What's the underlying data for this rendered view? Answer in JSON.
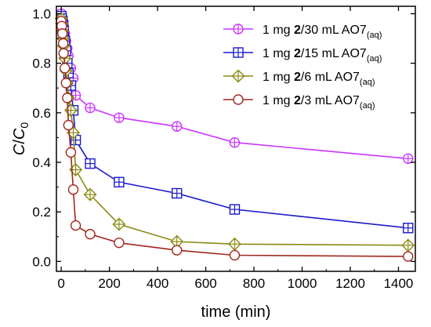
{
  "chart_data": {
    "type": "line",
    "xlabel": "time (min)",
    "ylabel": {
      "main": "C",
      "slash": "/",
      "base": "C",
      "sub": "0"
    },
    "xlim": [
      -20,
      1470
    ],
    "ylim": [
      -0.04,
      1.03
    ],
    "x_ticks": [
      0,
      200,
      400,
      600,
      800,
      1000,
      1200,
      1400
    ],
    "y_ticks": [
      0.0,
      0.2,
      0.4,
      0.6,
      0.8,
      1.0
    ],
    "y_tick_labels": [
      "0.0",
      "0.2",
      "0.4",
      "0.6",
      "0.8",
      "1.0"
    ],
    "legend_position": "top-right",
    "grid": false,
    "series": [
      {
        "name": "1 mg 2/30 mL AO7(aq)",
        "label_parts": {
          "pre": "1 mg ",
          "bold": "2",
          "post": "/30 mL AO7",
          "sub": "(aq)"
        },
        "color": "#cc33ff",
        "marker": "circle-cross",
        "x": [
          0,
          2,
          5,
          8,
          10,
          15,
          20,
          25,
          30,
          40,
          50,
          60,
          120,
          240,
          480,
          720,
          1440
        ],
        "y": [
          1.0,
          0.99,
          0.98,
          0.97,
          0.95,
          0.92,
          0.89,
          0.86,
          0.83,
          0.78,
          0.74,
          0.67,
          0.62,
          0.58,
          0.545,
          0.48,
          0.415
        ]
      },
      {
        "name": "1 mg 2/15 mL AO7(aq)",
        "label_parts": {
          "pre": "1 mg ",
          "bold": "2",
          "post": "/15 mL AO7",
          "sub": "(aq)"
        },
        "color": "#1a1acc",
        "marker": "square-cross",
        "x": [
          0,
          2,
          5,
          8,
          10,
          15,
          20,
          25,
          30,
          40,
          50,
          60,
          120,
          240,
          480,
          720,
          1440
        ],
        "y": [
          0.99,
          0.98,
          0.97,
          0.95,
          0.93,
          0.89,
          0.85,
          0.8,
          0.76,
          0.71,
          0.61,
          0.49,
          0.395,
          0.32,
          0.275,
          0.21,
          0.135
        ]
      },
      {
        "name": "1 mg 2/6 mL AO7(aq)",
        "label_parts": {
          "pre": "1 mg ",
          "bold": "2",
          "post": "/6 mL AO7",
          "sub": "(aq)"
        },
        "color": "#8a8a14",
        "marker": "diamond-cross",
        "x": [
          0,
          2,
          5,
          8,
          10,
          15,
          20,
          25,
          30,
          40,
          50,
          60,
          120,
          240,
          480,
          720,
          1440
        ],
        "y": [
          0.98,
          0.96,
          0.93,
          0.9,
          0.87,
          0.82,
          0.77,
          0.72,
          0.66,
          0.61,
          0.52,
          0.37,
          0.27,
          0.15,
          0.08,
          0.07,
          0.065
        ]
      },
      {
        "name": "1 mg 2/3 mL AO7(aq)",
        "label_parts": {
          "pre": "1 mg ",
          "bold": "2",
          "post": "/3 mL AO7",
          "sub": "(aq)"
        },
        "color": "#a0281e",
        "marker": "circle",
        "x": [
          0,
          2,
          5,
          8,
          10,
          15,
          20,
          25,
          30,
          40,
          50,
          60,
          120,
          240,
          480,
          720,
          1440
        ],
        "y": [
          0.97,
          0.95,
          0.92,
          0.88,
          0.84,
          0.78,
          0.72,
          0.66,
          0.55,
          0.44,
          0.29,
          0.145,
          0.11,
          0.075,
          0.045,
          0.025,
          0.02
        ]
      }
    ]
  }
}
